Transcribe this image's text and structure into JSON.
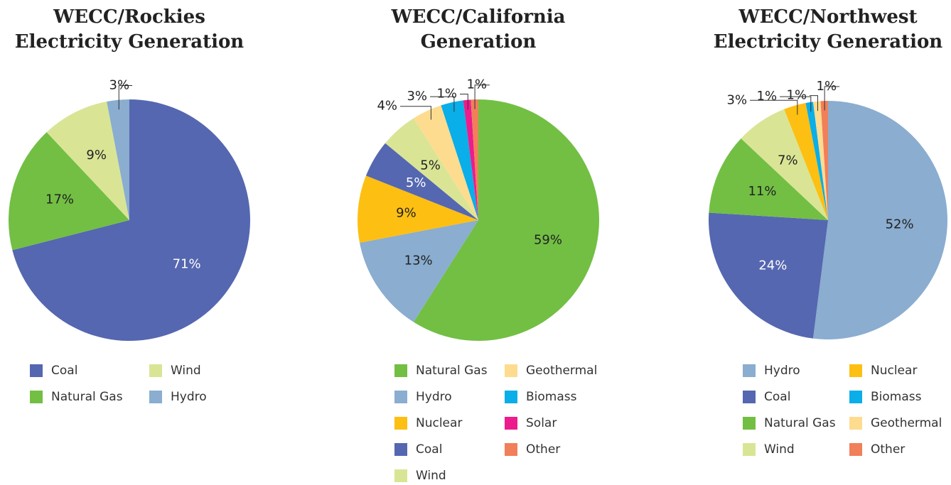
{
  "chart_data": [
    {
      "type": "pie",
      "title": [
        "WECC/Rockies",
        "Electricity Generation"
      ],
      "categories": [
        "Coal",
        "Natural Gas",
        "Wind",
        "Hydro"
      ],
      "values": [
        71,
        17,
        9,
        3
      ],
      "value_labels": [
        "71%",
        "17%",
        "9%",
        "3%"
      ],
      "colors": [
        "#5567b0",
        "#72bf44",
        "#d9e595",
        "#8aadd0"
      ]
    },
    {
      "type": "pie",
      "title": [
        "WECC/California",
        "Generation"
      ],
      "categories": [
        "Natural Gas",
        "Hydro",
        "Nuclear",
        "Coal",
        "Wind",
        "Geothermal",
        "Biomass",
        "Solar",
        "Other"
      ],
      "values": [
        59,
        13,
        9,
        5,
        5,
        4,
        3,
        1,
        1
      ],
      "value_labels": [
        "59%",
        "13%",
        "9%",
        "5%",
        "5%",
        "4%",
        "3%",
        "1%",
        "1%"
      ],
      "colors": [
        "#72bf44",
        "#8aadd0",
        "#fdbf12",
        "#5567b0",
        "#d9e595",
        "#fddc8f",
        "#0aaee8",
        "#ec1c8c",
        "#f07f5a"
      ]
    },
    {
      "type": "pie",
      "title": [
        "WECC/Northwest",
        "Electricity Generation"
      ],
      "categories": [
        "Hydro",
        "Coal",
        "Natural Gas",
        "Wind",
        "Nuclear",
        "Biomass",
        "Geothermal",
        "Other"
      ],
      "values": [
        52,
        24,
        11,
        7,
        3,
        1,
        1,
        1
      ],
      "value_labels": [
        "52%",
        "24%",
        "11%",
        "7%",
        "3%",
        "1%",
        "1%",
        "1%"
      ],
      "colors": [
        "#8aadd0",
        "#5567b0",
        "#72bf44",
        "#d9e595",
        "#fdbf12",
        "#0aaee8",
        "#fddc8f",
        "#f07f5a"
      ]
    }
  ]
}
